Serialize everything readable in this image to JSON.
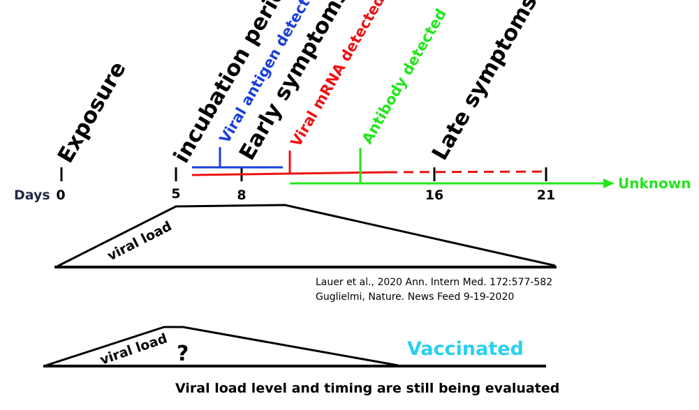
{
  "axis": {
    "label": "Days",
    "ticks": [
      "0",
      "5",
      "8",
      "16",
      "21"
    ],
    "end_label": "Unknown"
  },
  "events": {
    "exposure": "Exposure",
    "incubation": "incubation period",
    "antigen": "Viral antigen detected",
    "early": "Early symptoms",
    "mrna": "Viral mRNA detected",
    "antibody": "Antibody detected",
    "late": "Late symptoms"
  },
  "viral_load_label": "viral load",
  "viral_load_label_2": "viral load",
  "question_mark": "?",
  "vaccinated_label": "Vaccinated",
  "citations": [
    "Lauer et al., 2020 Ann. Intern Med. 172:577-582",
    "Guglielmi, Nature. News Feed 9-19-2020"
  ],
  "footer_note": "Viral load level and timing are still being evaluated",
  "colors": {
    "black": "#000000",
    "blue": "#1a3fd6",
    "red": "#ee1111",
    "green": "#22e61a",
    "cyan": "#2ad0f0",
    "navy": "#1f2a44"
  }
}
